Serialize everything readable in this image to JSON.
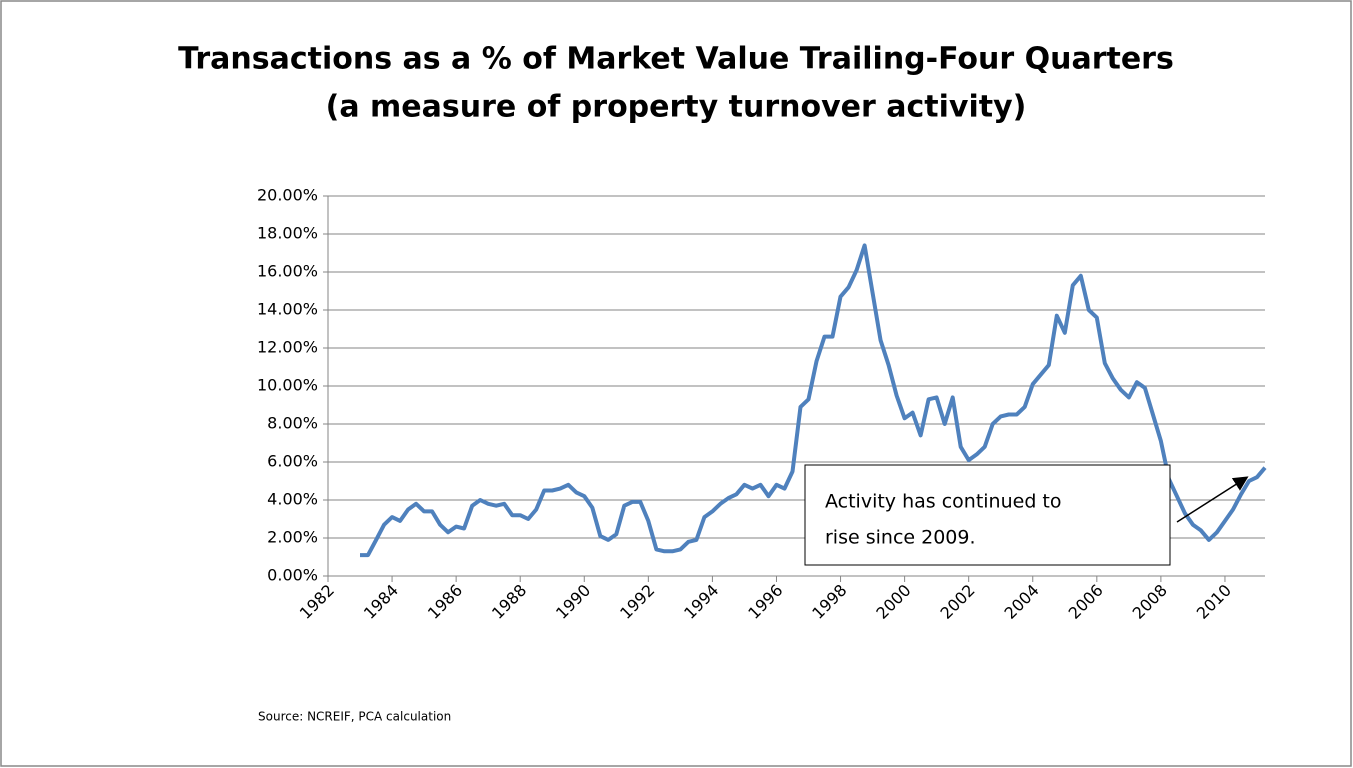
{
  "chart_data": {
    "type": "line",
    "title": "Transactions as a % of Market Value Trailing-Four Quarters",
    "subtitle": "(a measure of property turnover activity)",
    "x": [
      1983,
      1983.25,
      1983.5,
      1983.75,
      1984,
      1984.25,
      1984.5,
      1984.75,
      1985,
      1985.25,
      1985.5,
      1985.75,
      1986,
      1986.25,
      1986.5,
      1986.75,
      1987,
      1987.25,
      1987.5,
      1987.75,
      1988,
      1988.25,
      1988.5,
      1988.75,
      1989,
      1989.25,
      1989.5,
      1989.75,
      1990,
      1990.25,
      1990.5,
      1990.75,
      1991,
      1991.25,
      1991.5,
      1991.75,
      1992,
      1992.25,
      1992.5,
      1992.75,
      1993,
      1993.25,
      1993.5,
      1993.75,
      1994,
      1994.25,
      1994.5,
      1994.75,
      1995,
      1995.25,
      1995.5,
      1995.75,
      1996,
      1996.25,
      1996.5,
      1996.75,
      1997,
      1997.25,
      1997.5,
      1997.75,
      1998,
      1998.25,
      1998.5,
      1998.75,
      1999,
      1999.25,
      1999.5,
      1999.75,
      2000,
      2000.25,
      2000.5,
      2000.75,
      2001,
      2001.25,
      2001.5,
      2001.75,
      2002,
      2002.25,
      2002.5,
      2002.75,
      2003,
      2003.25,
      2003.5,
      2003.75,
      2004,
      2004.25,
      2004.5,
      2004.75,
      2005,
      2005.25,
      2005.5,
      2005.75,
      2006,
      2006.25,
      2006.5,
      2006.75,
      2007,
      2007.25,
      2007.5,
      2007.75,
      2008,
      2008.25,
      2008.5,
      2008.75,
      2009,
      2009.25,
      2009.5,
      2009.75,
      2010,
      2010.25,
      2010.5,
      2010.75,
      2011,
      2011.25
    ],
    "values": [
      1.1,
      1.1,
      1.9,
      2.7,
      3.1,
      2.9,
      3.5,
      3.8,
      3.4,
      3.4,
      2.7,
      2.3,
      2.6,
      2.5,
      3.7,
      4.0,
      3.8,
      3.7,
      3.8,
      3.2,
      3.2,
      3.0,
      3.5,
      4.5,
      4.5,
      4.6,
      4.8,
      4.4,
      4.2,
      3.6,
      2.1,
      1.9,
      2.2,
      3.7,
      3.9,
      3.9,
      2.9,
      1.4,
      1.3,
      1.3,
      1.4,
      1.8,
      1.9,
      3.1,
      3.4,
      3.8,
      4.1,
      4.3,
      4.8,
      4.6,
      4.8,
      4.2,
      4.8,
      4.6,
      5.5,
      8.9,
      9.3,
      11.3,
      12.6,
      12.6,
      14.7,
      15.2,
      16.1,
      17.4,
      14.9,
      12.4,
      11.1,
      9.5,
      8.3,
      8.6,
      7.4,
      9.3,
      9.4,
      8.0,
      9.4,
      6.8,
      6.1,
      6.4,
      6.8,
      8.0,
      8.4,
      8.5,
      8.5,
      8.9,
      10.1,
      10.6,
      11.1,
      13.7,
      12.8,
      15.3,
      15.8,
      14.0,
      13.6,
      11.2,
      10.4,
      9.8,
      9.4,
      10.2,
      9.9,
      8.5,
      7.1,
      5.1,
      4.2,
      3.3,
      2.7,
      2.4,
      1.9,
      2.3,
      2.9,
      3.5,
      4.3,
      5.0,
      5.2,
      5.7
    ],
    "color": "#4f81bd",
    "xlim": [
      1982,
      2011.25
    ],
    "xticks": [
      1982,
      1984,
      1986,
      1988,
      1990,
      1992,
      1994,
      1996,
      1998,
      2000,
      2002,
      2004,
      2006,
      2008,
      2010
    ],
    "ylim": [
      0,
      20
    ],
    "yticks": [
      {
        "value": 0,
        "label": "0.00%"
      },
      {
        "value": 2,
        "label": "2.00%"
      },
      {
        "value": 4,
        "label": "4.00%"
      },
      {
        "value": 6,
        "label": "6.00%"
      },
      {
        "value": 8,
        "label": "8.00%"
      },
      {
        "value": 10,
        "label": "10.00%"
      },
      {
        "value": 12,
        "label": "12.00%"
      },
      {
        "value": 14,
        "label": "14.00%"
      },
      {
        "value": 16,
        "label": "16.00%"
      },
      {
        "value": 18,
        "label": "18.00%"
      },
      {
        "value": 20,
        "label": "20.00%"
      }
    ],
    "grid": true,
    "annotation": [
      "Activity has continued to",
      "rise since 2009."
    ],
    "source": "Source:  NCREIF, PCA calculation"
  }
}
